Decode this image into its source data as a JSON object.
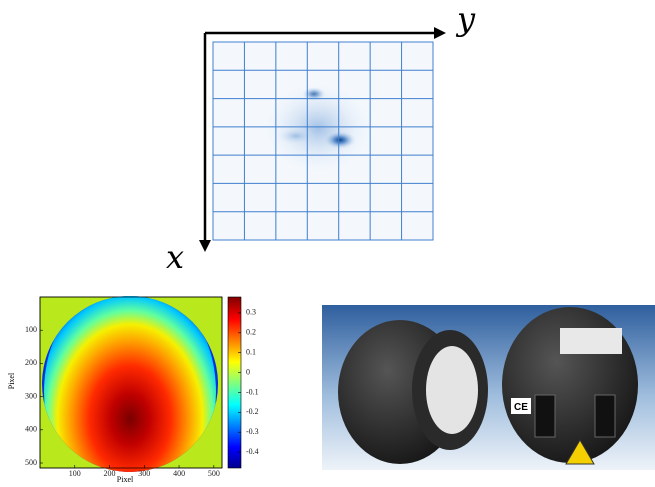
{
  "axes_diagram": {
    "x_label": "x",
    "y_label": "y"
  },
  "heatmap": {
    "xlabel": "Pixel",
    "ylabel": "Pixel",
    "xlim": [
      0,
      512
    ],
    "ylim": [
      0,
      512
    ],
    "xticks": [
      100,
      200,
      300,
      400,
      500
    ],
    "yticks": [
      100,
      200,
      300,
      400,
      500
    ],
    "clim": [
      -0.48,
      0.38
    ],
    "colorbar_ticks": [
      0.3,
      0.2,
      0.1,
      0,
      -0.1,
      -0.2,
      -0.3,
      -0.4
    ]
  },
  "photo": {
    "mark": "CE"
  }
}
